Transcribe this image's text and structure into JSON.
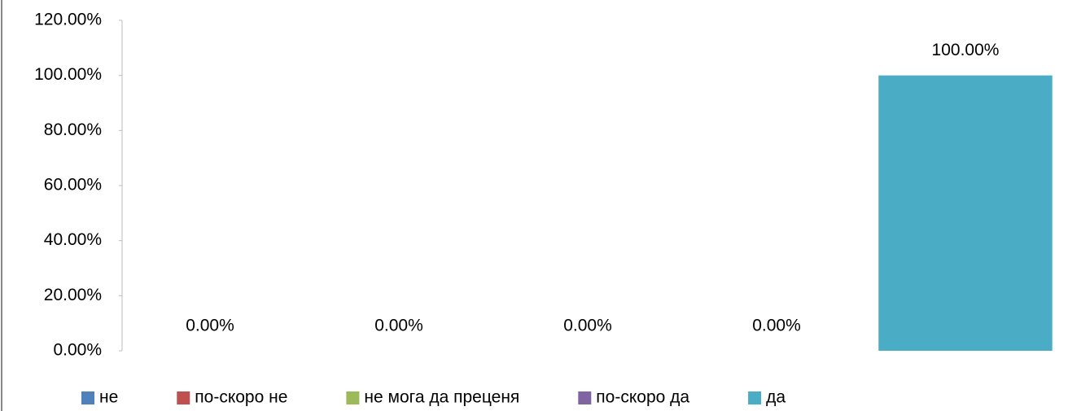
{
  "chart_data": {
    "type": "bar",
    "categories": [
      null
    ],
    "series": [
      {
        "name": "не",
        "color": "#4f81bd",
        "values": [
          0
        ],
        "value_labels": [
          "0.00%"
        ]
      },
      {
        "name": "по-скоро не",
        "color": "#c0504d",
        "values": [
          0
        ],
        "value_labels": [
          "0.00%"
        ]
      },
      {
        "name": "не мога да преценя",
        "color": "#9bbb59",
        "values": [
          0
        ],
        "value_labels": [
          "0.00%"
        ]
      },
      {
        "name": "по-скоро да",
        "color": "#8064a2",
        "values": [
          0
        ],
        "value_labels": [
          "0.00%"
        ]
      },
      {
        "name": "да",
        "color": "#4bacc6",
        "values": [
          100
        ],
        "value_labels": [
          "100.00%"
        ]
      }
    ],
    "ylim": [
      0,
      120
    ],
    "yticks": [
      {
        "value": 0,
        "label": "0.00%"
      },
      {
        "value": 20,
        "label": "20.00%"
      },
      {
        "value": 40,
        "label": "40.00%"
      },
      {
        "value": 60,
        "label": "60.00%"
      },
      {
        "value": 80,
        "label": "80.00%"
      },
      {
        "value": 100,
        "label": "100.00%"
      },
      {
        "value": 120,
        "label": "120.00%"
      }
    ],
    "grid": false,
    "legend": "bottom"
  }
}
